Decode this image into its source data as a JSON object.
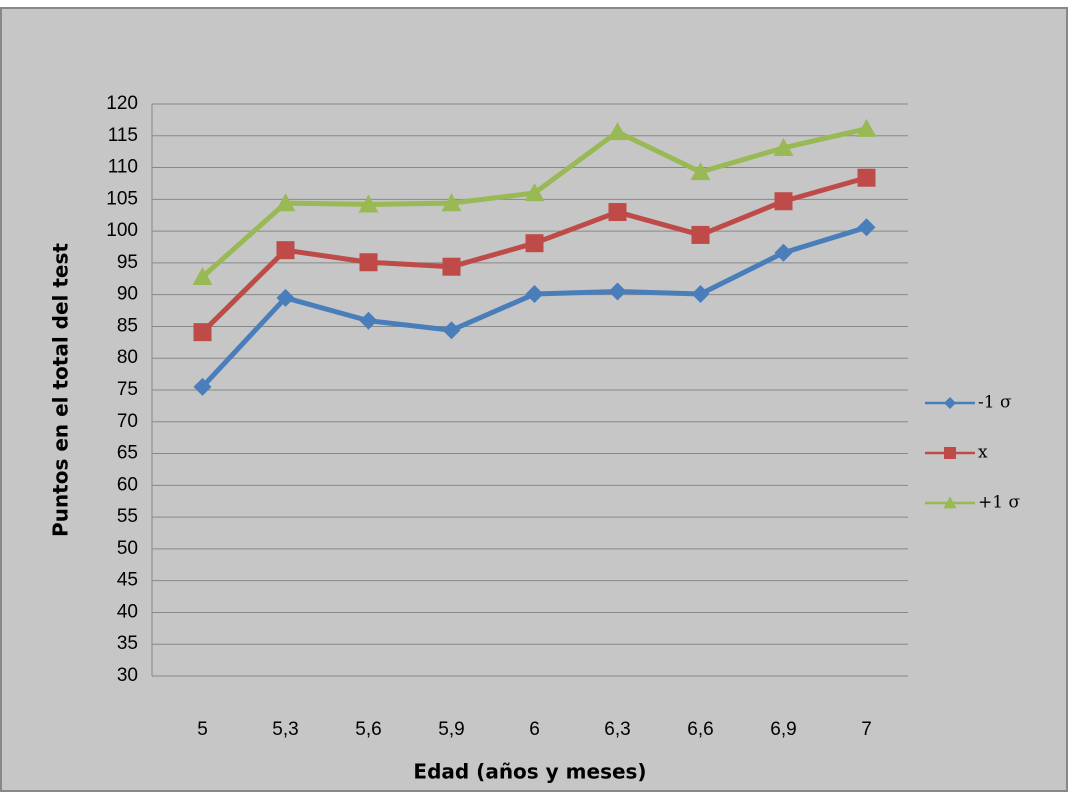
{
  "chart_data": {
    "type": "line",
    "x_label": "Edad (años y meses)",
    "y_label": "Puntos en el total del test",
    "categories": [
      "5",
      "5,3",
      "5,6",
      "5,9",
      "6",
      "6,3",
      "6,6",
      "6,9",
      "7"
    ],
    "series": [
      {
        "name": "-1 σ",
        "color": "#4a7ebb",
        "marker": "diamond",
        "values": [
          75.5,
          89.5,
          85.9,
          84.4,
          90.1,
          90.5,
          90.1,
          96.6,
          100.6
        ]
      },
      {
        "name": "x",
        "color": "#be4b48",
        "marker": "square",
        "values": [
          84.1,
          97,
          95.1,
          94.4,
          98.1,
          103,
          99.4,
          104.7,
          108.4
        ]
      },
      {
        "name": "+1 σ",
        "color": "#98b954",
        "marker": "triangle",
        "values": [
          92.8,
          104.4,
          104.2,
          104.4,
          106,
          115.6,
          109.3,
          113.1,
          116.1
        ]
      }
    ],
    "ylim": [
      30,
      120
    ],
    "yticks": [
      30,
      35,
      40,
      45,
      50,
      55,
      60,
      65,
      70,
      75,
      80,
      85,
      90,
      95,
      100,
      105,
      110,
      115,
      120
    ],
    "grid": true,
    "legend": "right"
  }
}
